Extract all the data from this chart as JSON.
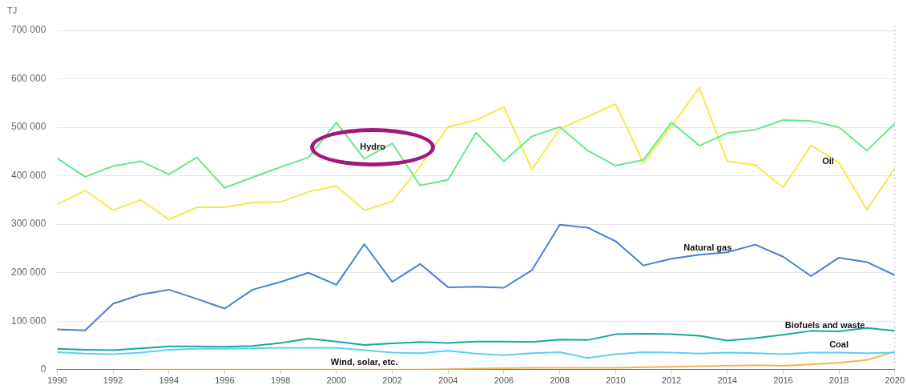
{
  "chart_data": {
    "type": "line",
    "ylabel": "TJ",
    "x": [
      1990,
      1991,
      1992,
      1993,
      1994,
      1995,
      1996,
      1997,
      1998,
      1999,
      2000,
      2001,
      2002,
      2003,
      2004,
      2005,
      2006,
      2007,
      2008,
      2009,
      2010,
      2011,
      2012,
      2013,
      2014,
      2015,
      2016,
      2017,
      2018,
      2019,
      2020
    ],
    "xlim": [
      1990,
      2020
    ],
    "xticks": [
      1990,
      1992,
      1994,
      1996,
      1998,
      2000,
      2002,
      2004,
      2006,
      2008,
      2010,
      2012,
      2014,
      2016,
      2018,
      2020
    ],
    "ylim": [
      0,
      700000
    ],
    "yticks": [
      {
        "value": 0,
        "label": "0"
      },
      {
        "value": 100000,
        "label": "100 000"
      },
      {
        "value": 200000,
        "label": "200 000"
      },
      {
        "value": 300000,
        "label": "300 000"
      },
      {
        "value": 400000,
        "label": "400 000"
      },
      {
        "value": 500000,
        "label": "500 000"
      },
      {
        "value": 600000,
        "label": "600 000"
      },
      {
        "value": 700000,
        "label": "700 000"
      }
    ],
    "grid": "y",
    "legend": false,
    "marker": "none",
    "line_style": "solid",
    "ref_lines": [
      {
        "axis": "x",
        "value": 2020,
        "label": null,
        "color": "#bbbbbb",
        "line_style": "dotted"
      }
    ],
    "series": [
      {
        "name": "Hydro",
        "color": "#66e88a",
        "values": [
          436000,
          398000,
          420000,
          430000,
          403000,
          438000,
          375000,
          397000,
          418000,
          438000,
          510000,
          435000,
          467000,
          380000,
          392000,
          489000,
          430000,
          481000,
          501000,
          452000,
          421000,
          433000,
          510000,
          462000,
          488000,
          495000,
          515000,
          513000,
          500000,
          452000,
          508000
        ]
      },
      {
        "name": "Oil",
        "color": "#f5e94a",
        "values": [
          341000,
          370000,
          329000,
          350000,
          310000,
          335000,
          335000,
          345000,
          346000,
          367000,
          379000,
          329000,
          347000,
          420000,
          501000,
          515000,
          542000,
          413000,
          497000,
          522000,
          548000,
          426000,
          502000,
          582000,
          430000,
          422000,
          376000,
          463000,
          427000,
          330000,
          415000
        ]
      },
      {
        "name": "Natural gas",
        "color": "#4a7fd4",
        "values": [
          83000,
          81000,
          136000,
          155000,
          165000,
          146000,
          126000,
          165000,
          181000,
          200000,
          175000,
          259000,
          181000,
          218000,
          170000,
          171000,
          169000,
          205000,
          299000,
          293000,
          265000,
          215000,
          229000,
          237000,
          242000,
          258000,
          233000,
          193000,
          231000,
          222000,
          195000
        ]
      },
      {
        "name": "Biofuels and waste",
        "color": "#16a99a",
        "values": [
          43000,
          41000,
          40000,
          44000,
          48000,
          48000,
          47000,
          49000,
          55000,
          64000,
          58000,
          51000,
          54000,
          57000,
          55000,
          58000,
          58000,
          57000,
          62000,
          61000,
          73000,
          74000,
          73000,
          70000,
          60000,
          65000,
          72000,
          80000,
          79000,
          86000,
          80000
        ]
      },
      {
        "name": "Coal",
        "color": "#5dcdf5",
        "values": [
          36000,
          33000,
          32000,
          35000,
          41000,
          43000,
          43000,
          44000,
          45000,
          45000,
          45000,
          40000,
          35000,
          34000,
          39000,
          33000,
          30000,
          34000,
          36000,
          24000,
          32000,
          36000,
          35000,
          33000,
          35000,
          34000,
          32000,
          35000,
          35000,
          34000,
          35000
        ]
      },
      {
        "name": "Wind, solar, etc.",
        "color": "#f5b555",
        "values": [
          null,
          null,
          null,
          0,
          0,
          0,
          0,
          0,
          0,
          0,
          0,
          0,
          0,
          0,
          1000,
          2000,
          3000,
          4000,
          4000,
          4000,
          4000,
          5000,
          6000,
          7000,
          8000,
          9000,
          8000,
          11000,
          14000,
          20000,
          37000
        ]
      }
    ]
  }
}
